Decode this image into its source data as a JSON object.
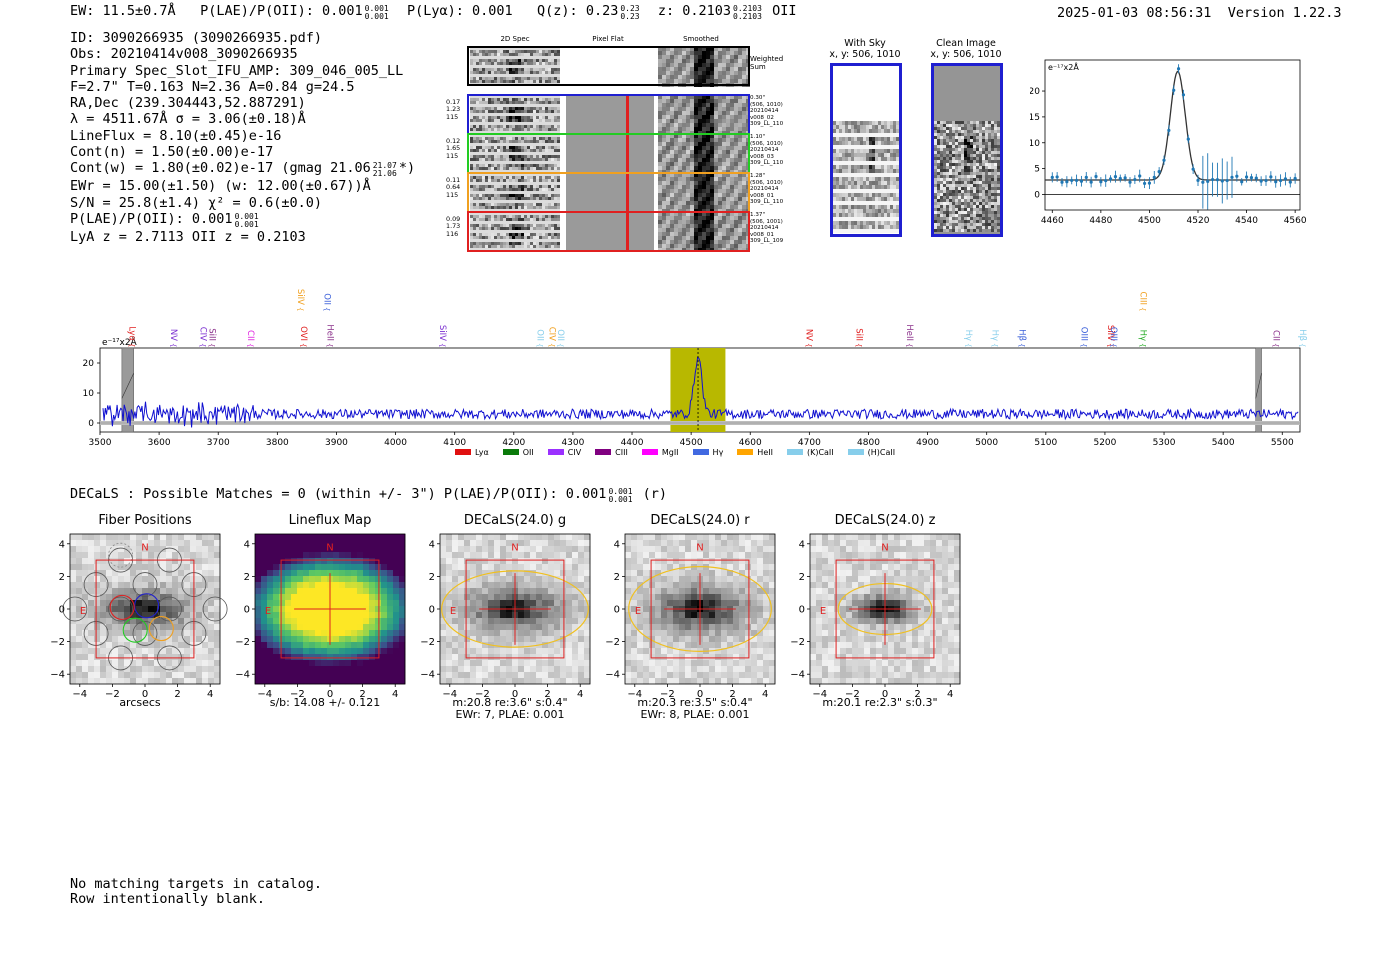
{
  "header": {
    "ew": "EW: 11.5±0.7Å",
    "plae_prefix": "P(LAE)/P(OII): 0.001",
    "plae_hi": "0.001",
    "plae_lo": "0.001",
    "plya": "P(Lyα): 0.001",
    "qz_prefix": "Q(z): 0.23",
    "qz_hi": "0.23",
    "qz_lo": "0.23",
    "z_prefix": "z: 0.2103",
    "z_hi": "0.2103",
    "z_lo": "0.2103",
    "z_line": "OII",
    "timestamp": "2025-01-03 08:56:31",
    "version": "Version 1.22.3"
  },
  "info": {
    "id": "ID: 3090266935 (3090266935.pdf)",
    "obs": "Obs: 20210414v008_3090266935",
    "primary": "Primary Spec_Slot_IFU_AMP: 309_046_005_LL",
    "params": "F=2.7\"  T=0.163  N=2.36  A=0.84  g=24.5",
    "radec": "RA,Dec (239.304443,52.887291)",
    "lambda": "λ = 4511.67Å   σ = 3.06(±0.18)Å",
    "lineflux": "LineFlux = 8.10(±0.45)e-16",
    "contn": "Cont(n) = 1.50(±0.00)e-17",
    "contw_prefix": "Cont(w) = 1.80(±0.02)e-17 (gmag 21.06",
    "contw_hi": "21.07",
    "contw_lo": "21.06",
    "contw_suffix": "*)",
    "ewr": "EWr = 15.00(±1.50) (w: 12.00(±0.67))Å",
    "sn": "S/N = 25.8(±1.4)  χ² = 0.6(±0.0)",
    "plae2_prefix": "P(LAE)/P(OII): 0.001",
    "plae2_hi": "0.001",
    "plae2_lo": "0.001",
    "lyaz": "LyA z = 2.7113  OII z = 0.2103"
  },
  "cutouts": {
    "col_titles": [
      "2D Spec",
      "Pixel Flat",
      "Smoothed"
    ],
    "sum_label": "Weighted Sum",
    "rows": [
      {
        "left": [
          "0.17",
          "1.23",
          "115"
        ],
        "right": [
          "0.30\"",
          "(506, 1010)",
          "20210414",
          "v008_02",
          "309_LL_110"
        ],
        "color": "#1f1fd0"
      },
      {
        "left": [
          "0.12",
          "1.65",
          "115"
        ],
        "right": [
          "1.10\"",
          "(506, 1010)",
          "20210414",
          "v008_03",
          "309_LL_110"
        ],
        "color": "#22cc22"
      },
      {
        "left": [
          "0.11",
          "0.64",
          "115"
        ],
        "right": [
          "1.28\"",
          "(506, 1010)",
          "20210414",
          "v008_01",
          "309_LL_110"
        ],
        "color": "#f0a020"
      },
      {
        "left": [
          "0.09",
          "1.73",
          "116"
        ],
        "right": [
          "1.37\"",
          "(506, 1001)",
          "20210414",
          "v008_01",
          "309_LL_109"
        ],
        "color": "#e02020"
      }
    ]
  },
  "sky_panels": [
    {
      "title": "With Sky",
      "coords": "x, y: 506, 1010"
    },
    {
      "title": "Clean Image",
      "coords": "x, y: 506, 1010"
    }
  ],
  "zoom_fit": {
    "unit_label": "e⁻¹⁷x2Å",
    "x_ticks": [
      "4460",
      "4480",
      "4500",
      "4520",
      "4540",
      "4560"
    ],
    "y_ticks": [
      "0",
      "5",
      "10",
      "15",
      "20"
    ],
    "xlim": [
      4457,
      4562
    ],
    "ylim": [
      -3,
      26
    ],
    "gauss": {
      "mu": 4511.67,
      "sigma": 3.06,
      "amp": 21.0,
      "cont": 2.8
    }
  },
  "chart_data": {
    "type": "line",
    "title": "",
    "xlabel": "",
    "ylabel": "",
    "unit_label": "e⁻¹⁷x2Å",
    "xlim": [
      3500,
      5530
    ],
    "ylim": [
      -3,
      25
    ],
    "x_ticks": [
      "3500",
      "3600",
      "3700",
      "3800",
      "3900",
      "4000",
      "4100",
      "4200",
      "4300",
      "4400",
      "4500",
      "4600",
      "4700",
      "4800",
      "4900",
      "5000",
      "5100",
      "5200",
      "5300",
      "5400",
      "5500"
    ],
    "y_ticks": [
      "0",
      "10",
      "20"
    ],
    "series": [
      {
        "name": "spectrum",
        "continuum": 3.0,
        "peak_x": 4511.67,
        "peak_y": 22.0
      }
    ],
    "highlight_window": [
      4465,
      4558
    ],
    "masked_regions": [
      [
        3537,
        3557
      ],
      [
        5455,
        5465
      ]
    ],
    "line_markers": [
      {
        "label": "Lyα",
        "x": 3545,
        "color": "#e02020",
        "tier": 1
      },
      {
        "label": "NV",
        "x": 3615,
        "color": "#7b2fd0",
        "tier": 1
      },
      {
        "label": "CIV",
        "x": 3665,
        "color": "#7b2fd0",
        "tier": 1
      },
      {
        "label": "SiII",
        "x": 3680,
        "color": "#8a2f8a",
        "tier": 1
      },
      {
        "label": "CII",
        "x": 3745,
        "color": "#e020e0",
        "tier": 1
      },
      {
        "label": "SiIV",
        "x": 3830,
        "color": "#f0a020",
        "tier": 2
      },
      {
        "label": "OII",
        "x": 3875,
        "color": "#3a5fd9",
        "tier": 2
      },
      {
        "label": "OVI",
        "x": 3835,
        "color": "#e02020",
        "tier": 1
      },
      {
        "label": "HeII",
        "x": 3880,
        "color": "#8a2f8a",
        "tier": 1
      },
      {
        "label": "SiIV",
        "x": 4070,
        "color": "#7b2fd0",
        "tier": 1
      },
      {
        "label": "OII",
        "x": 4235,
        "color": "#87ceeb",
        "tier": 1
      },
      {
        "label": "CIV",
        "x": 4255,
        "color": "#f0a020",
        "tier": 1
      },
      {
        "label": "OII",
        "x": 4270,
        "color": "#87ceeb",
        "tier": 1
      },
      {
        "label": "NV",
        "x": 4690,
        "color": "#e02020",
        "tier": 1
      },
      {
        "label": "SiII",
        "x": 4775,
        "color": "#e02020",
        "tier": 1
      },
      {
        "label": "HeII",
        "x": 4860,
        "color": "#8a2f8a",
        "tier": 1
      },
      {
        "label": "Hγ",
        "x": 4960,
        "color": "#87ceeb",
        "tier": 1
      },
      {
        "label": "Hγ",
        "x": 5005,
        "color": "#87ceeb",
        "tier": 1
      },
      {
        "label": "Hβ",
        "x": 5050,
        "color": "#3a5fd9",
        "tier": 1
      },
      {
        "label": "OIII",
        "x": 5155,
        "color": "#3a5fd9",
        "tier": 1
      },
      {
        "label": "SiIV",
        "x": 5200,
        "color": "#e02020",
        "tier": 1
      },
      {
        "label": "OIII",
        "x": 5205,
        "color": "#3a5fd9",
        "tier": 1
      },
      {
        "label": "CIII",
        "x": 5255,
        "color": "#f0a020",
        "tier": 2
      },
      {
        "label": "Hγ",
        "x": 5255,
        "color": "#22aa22",
        "tier": 1
      },
      {
        "label": "CII",
        "x": 5480,
        "color": "#8a2f8a",
        "tier": 1
      },
      {
        "label": "Hβ",
        "x": 5525,
        "color": "#87ceeb",
        "tier": 1
      }
    ]
  },
  "legend": [
    {
      "label": "Lyα",
      "color": "#e01010"
    },
    {
      "label": "OII",
      "color": "#0a7a0a"
    },
    {
      "label": "CIV",
      "color": "#9b30ff"
    },
    {
      "label": "CIII",
      "color": "#800080"
    },
    {
      "label": "MgII",
      "color": "#ff00ff"
    },
    {
      "label": "Hγ",
      "color": "#4169e1"
    },
    {
      "label": "HeII",
      "color": "#ffa500"
    },
    {
      "label": "(K)CaII",
      "color": "#87ceeb"
    },
    {
      "label": "(H)CaII",
      "color": "#87ceeb"
    }
  ],
  "decals_line": {
    "prefix": "DECaLS : Possible Matches = 0 (within +/- 3\")  P(LAE)/P(OII): 0.001",
    "hi": "0.001",
    "lo": "0.001",
    "suffix": "(r)"
  },
  "image_panels": [
    {
      "title": "Fiber Positions",
      "caption1": "arcsecs",
      "caption2": "",
      "kind": "fibers"
    },
    {
      "title": "Lineflux Map",
      "caption1": "s/b: 14.08 +/- 0.121",
      "caption2": "",
      "kind": "lineflux"
    },
    {
      "title": "DECaLS(24.0) g",
      "caption1": "m:20.8  re:3.6\"  s:0.4\"",
      "caption2": "EWr: 7, PLAE: 0.001",
      "kind": "decals",
      "ellipse": [
        3.6,
        1.8
      ]
    },
    {
      "title": "DECaLS(24.0) r",
      "caption1": "m:20.3  re:3.5\"  s:0.4\"",
      "caption2": "EWr: 8, PLAE: 0.001",
      "kind": "decals",
      "ellipse": [
        3.5,
        2.0
      ]
    },
    {
      "title": "DECaLS(24.0) z",
      "caption1": "m:20.1  re:2.3\"  s:0.3\"",
      "caption2": "",
      "kind": "decals",
      "ellipse": [
        2.3,
        1.2
      ]
    }
  ],
  "panel_axis": {
    "ticks": [
      "-4",
      "-2",
      "0",
      "2",
      "4"
    ],
    "compass_n": "N",
    "compass_e": "E"
  },
  "footer": {
    "line1": "No matching targets in catalog.",
    "line2": "Row intentionally blank."
  }
}
